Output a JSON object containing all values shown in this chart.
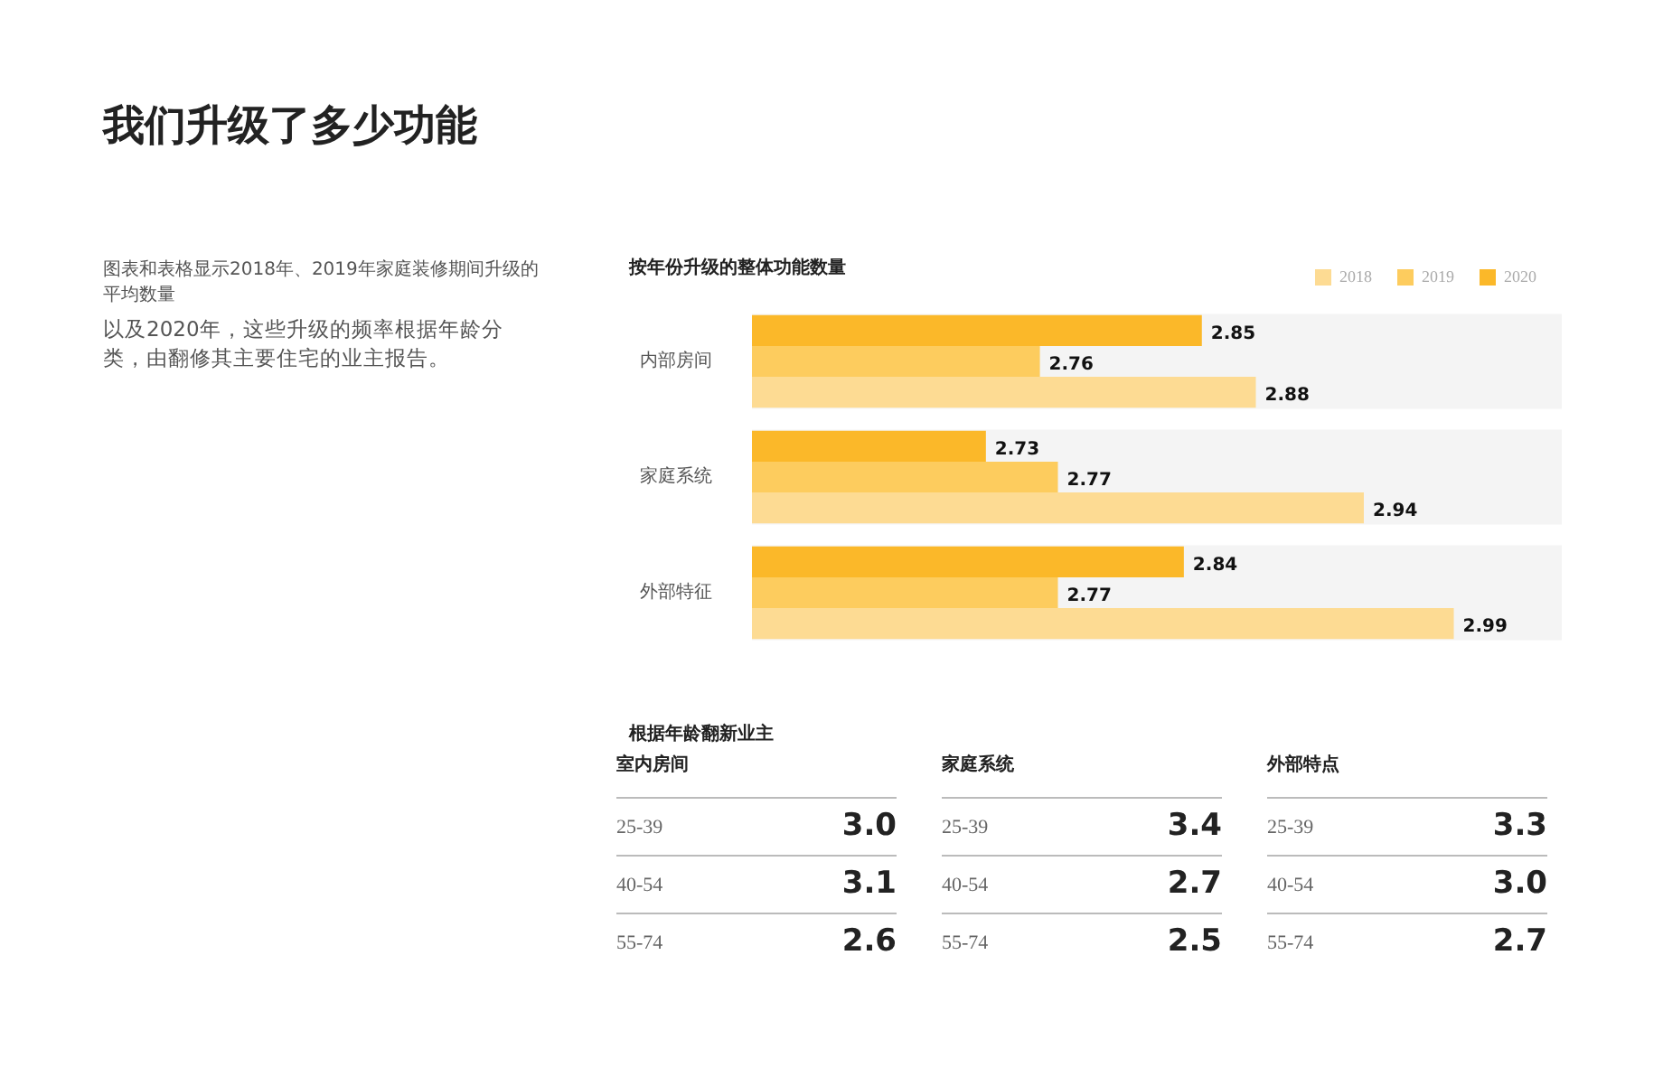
{
  "chart_data": [
    {
      "type": "other",
      "title": "我们升级了多少功能",
      "annotations": [
        "图表和表格显示2018年、2019年家庭装修期间升级的平均数量",
        "以及2020年，这些升级的频率根据年龄分类，由翻修其主要住宅的业主报告。"
      ]
    },
    {
      "type": "bar",
      "orientation": "horizontal",
      "title": "按年份升级的整体功能数量",
      "categories": [
        "内部房间",
        "家庭系统",
        "外部特征"
      ],
      "series": [
        {
          "name": "2020",
          "color": "#fbb829",
          "values": [
            2.85,
            2.73,
            2.84
          ]
        },
        {
          "name": "2019",
          "color": "#fdcc5e",
          "values": [
            2.76,
            2.77,
            2.77
          ]
        },
        {
          "name": "2018",
          "color": "#fddb93",
          "values": [
            2.88,
            2.94,
            2.99
          ]
        }
      ],
      "xlim": [
        2.6,
        3.05
      ],
      "data_labels": true,
      "legend": "top right",
      "tick_labels": "y",
      "bands": [
        {
          "axis": "y",
          "from": "内部房间",
          "to": "内部房间",
          "color": "#f4f4f4"
        },
        {
          "axis": "y",
          "from": "家庭系统",
          "to": "家庭系统",
          "color": "#f4f4f4"
        },
        {
          "axis": "y",
          "from": "外部特征",
          "to": "外部特征",
          "color": "#f4f4f4"
        }
      ]
    },
    {
      "type": "other",
      "title": "根据年龄翻新业主"
    },
    {
      "type": "other",
      "title": "室内房间",
      "categories": [
        "25-39",
        "40-54",
        "55-74"
      ],
      "value_labels": [
        "3.0",
        "3.1",
        "2.6"
      ]
    },
    {
      "type": "other",
      "title": "家庭系统",
      "categories": [
        "25-39",
        "40-54",
        "55-74"
      ],
      "value_labels": [
        "3.4",
        "2.7",
        "2.5"
      ]
    },
    {
      "type": "other",
      "title": "外部特点",
      "categories": [
        "25-39",
        "40-54",
        "55-74"
      ],
      "value_labels": [
        "3.3",
        "3.0",
        "2.7"
      ]
    }
  ]
}
